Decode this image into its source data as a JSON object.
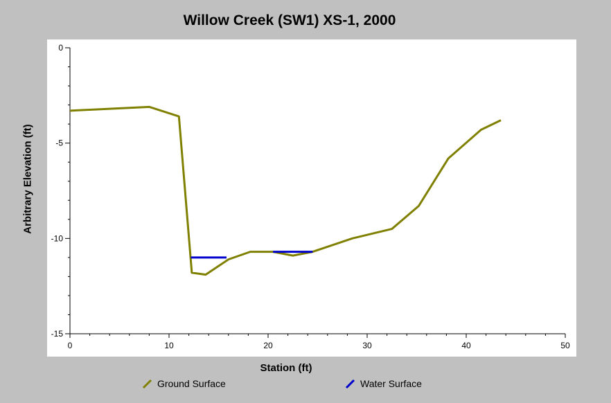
{
  "chart_data": {
    "type": "line",
    "title": "Willow Creek (SW1) XS-1, 2000",
    "xlabel": "Station (ft)",
    "ylabel": "Arbitrary Elevation (ft)",
    "xlim": [
      0,
      50
    ],
    "ylim": [
      -15,
      0
    ],
    "x_ticks": [
      "0",
      "10",
      "20",
      "30",
      "40",
      "50"
    ],
    "y_ticks": [
      "0",
      "-5",
      "-10",
      "-15"
    ],
    "grid": false,
    "legend_position": "bottom",
    "series": [
      {
        "name": "Ground Surface",
        "color": "#808000",
        "points": [
          [
            0,
            -3.3
          ],
          [
            8,
            -3.1
          ],
          [
            11,
            -3.6
          ],
          [
            12.3,
            -11.8
          ],
          [
            13.7,
            -11.9
          ],
          [
            16,
            -11.1
          ],
          [
            18.2,
            -10.7
          ],
          [
            20.5,
            -10.7
          ],
          [
            22.5,
            -10.9
          ],
          [
            24.5,
            -10.7
          ],
          [
            28.5,
            -10.0
          ],
          [
            32.5,
            -9.5
          ],
          [
            35.2,
            -8.3
          ],
          [
            38.2,
            -5.8
          ],
          [
            41.5,
            -4.3
          ],
          [
            43.5,
            -3.8
          ]
        ]
      },
      {
        "name": "Water Surface",
        "color": "#0000cc",
        "segments": [
          [
            [
              12.2,
              -11.0
            ],
            [
              15.8,
              -11.0
            ]
          ],
          [
            [
              20.5,
              -10.7
            ],
            [
              24.5,
              -10.7
            ]
          ]
        ]
      }
    ]
  }
}
